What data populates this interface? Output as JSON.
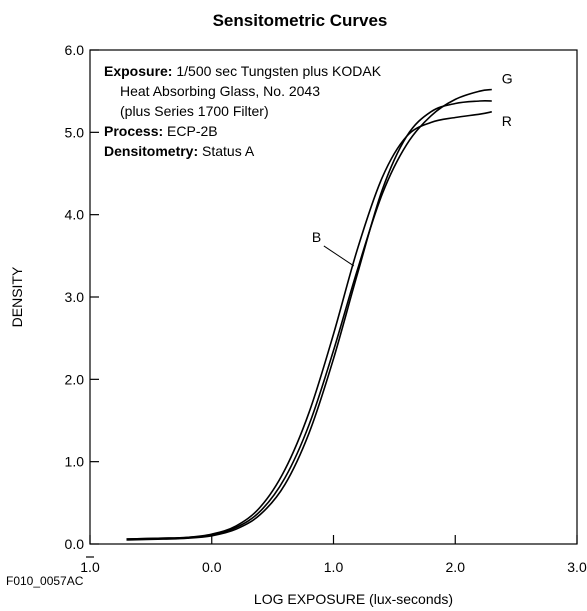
{
  "chart_data": {
    "type": "line",
    "title": "Sensitometric Curves",
    "xlabel": "LOG EXPOSURE (lux-seconds)",
    "ylabel": "DENSITY",
    "xlim": [
      -1.0,
      3.0
    ],
    "ylim": [
      0.0,
      6.0
    ],
    "x_ticks": [
      "1.0",
      "0.0",
      "1.0",
      "2.0",
      "3.0"
    ],
    "x_tick_values": [
      -1.0,
      0.0,
      1.0,
      2.0,
      3.0
    ],
    "x_tick_bar": [
      true,
      false,
      false,
      false,
      false
    ],
    "y_ticks": [
      "0.0",
      "1.0",
      "2.0",
      "3.0",
      "4.0",
      "5.0",
      "6.0"
    ],
    "y_tick_values": [
      0.0,
      1.0,
      2.0,
      3.0,
      4.0,
      5.0,
      6.0
    ],
    "grid": false,
    "figure_code": "F010_0057AC",
    "annotations": [
      {
        "bold": "Exposure:",
        "text": " 1/500 sec Tungsten plus KODAK"
      },
      {
        "bold": "",
        "text": "Heat Absorbing Glass, No. 2043"
      },
      {
        "bold": "",
        "text": "(plus Series 1700 Filter)"
      },
      {
        "bold": "Process:",
        "text": " ECP-2B"
      },
      {
        "bold": "Densitometry:",
        "text": " Status A"
      }
    ],
    "series": [
      {
        "name": "G",
        "x": [
          -0.7,
          -0.4,
          -0.2,
          0.0,
          0.2,
          0.4,
          0.6,
          0.8,
          1.0,
          1.2,
          1.4,
          1.6,
          1.8,
          2.0,
          2.2,
          2.3
        ],
        "y": [
          0.06,
          0.07,
          0.08,
          0.11,
          0.2,
          0.4,
          0.8,
          1.45,
          2.35,
          3.35,
          4.25,
          4.85,
          5.2,
          5.4,
          5.5,
          5.52
        ]
      },
      {
        "name": "R",
        "x": [
          -0.7,
          -0.4,
          -0.2,
          0.0,
          0.2,
          0.4,
          0.6,
          0.8,
          1.0,
          1.2,
          1.4,
          1.6,
          1.8,
          2.0,
          2.2,
          2.3
        ],
        "y": [
          0.06,
          0.07,
          0.08,
          0.12,
          0.22,
          0.45,
          0.9,
          1.6,
          2.55,
          3.6,
          4.45,
          4.95,
          5.12,
          5.18,
          5.22,
          5.25
        ]
      },
      {
        "name": "B",
        "x": [
          -0.7,
          -0.4,
          -0.2,
          0.0,
          0.2,
          0.4,
          0.6,
          0.8,
          1.0,
          1.2,
          1.4,
          1.6,
          1.8,
          2.0,
          2.2,
          2.3
        ],
        "y": [
          0.05,
          0.06,
          0.07,
          0.1,
          0.18,
          0.36,
          0.72,
          1.35,
          2.25,
          3.3,
          4.3,
          4.95,
          5.25,
          5.35,
          5.38,
          5.38
        ]
      }
    ],
    "curve_labels": [
      {
        "text": "G",
        "at_series": "G"
      },
      {
        "text": "R",
        "at_series": "R"
      },
      {
        "text": "B",
        "x": 1.2,
        "y": 3.45
      }
    ]
  }
}
